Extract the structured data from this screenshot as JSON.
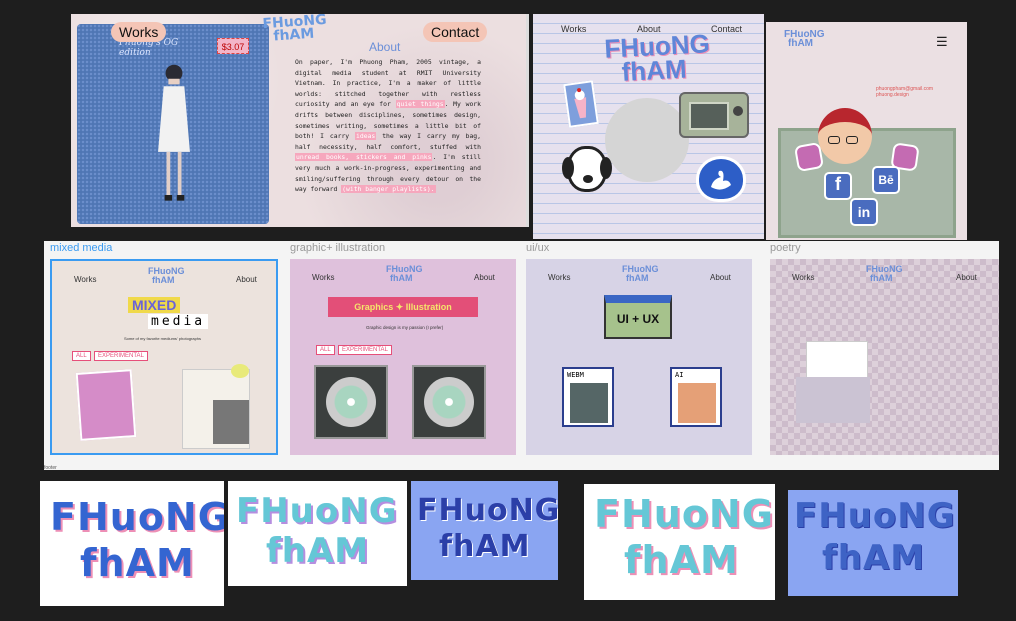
{
  "panel_about": {
    "nav_works": "Works",
    "nav_contact": "Contact",
    "logo_line1": "FHuoNG",
    "logo_line2": "fhAM",
    "photo_caption": "Phuong's OG edition",
    "price_sticker": "$3.07",
    "heading": "About",
    "body_p1": "On paper, I'm Phuong Pham, 2005 vintage, a digital media student at RMIT University Vietnam. In practice, I'm a maker of little worlds: stitched together with restless curiosity and an eye for ",
    "hl_quiet": "quiet things",
    "body_p2": ". My work drifts between disciplines, sometimes design, sometimes writing, sometimes a little bit of both! I carry ",
    "hl_ideas": "ideas",
    "body_p3": " the way I carry my bag, half necessity, half comfort, stuffed with ",
    "hl_receipt": "unread books, stickers and pinks",
    "body_p4": ". I'm still very much a work-in-progress, experimenting and smiling/suffering through every detour on the way forward ",
    "hl_playlist": "(with banger playlists)."
  },
  "panel_home": {
    "nav_works": "Works",
    "nav_about": "About",
    "nav_contact": "Contact",
    "logo_line1": "FHuoNG",
    "logo_line2": "fhAM"
  },
  "panel_contact": {
    "logo_line1": "FHuoNG",
    "logo_line2": "fhAM",
    "menu_icon": "☰",
    "email_note": "phuongpham@gmail.com",
    "email_note2": "phuong.design",
    "facebook_letter": "f",
    "behance_letter": "Bē",
    "linkedin_letter": "in"
  },
  "gallery": {
    "labels": [
      "mixed media",
      "graphic+ illustration",
      "ui/ux",
      "poetry"
    ],
    "nav_works": "Works",
    "nav_about": "About",
    "logo_line1": "FHuoNG",
    "logo_line2": "fhAM",
    "mixed_title1": "MIXED",
    "mixed_title2": "media",
    "mixed_caption": "Some of my favorite mediums' photographs",
    "tag_all": "ALL",
    "tag_experimental": "EXPERIMENTAL",
    "graphic_title": "Graphics ✦ Illustration",
    "graphic_caption": "Graphic design is my passion (I prefer)",
    "uiux_title": "UI + UX",
    "file1": "WEBM",
    "file2": "AI",
    "bottom_label": "footer"
  },
  "logos": {
    "line1": "FHuoNG",
    "line2": "fhAM"
  },
  "colors": {
    "logo_blue": "#5f86d8",
    "logo_pink": "#ed8fb6",
    "logo_teal": "#65c7d6",
    "highlight_pink": "#f6a7bd",
    "selected_border": "#3a9bf1"
  }
}
